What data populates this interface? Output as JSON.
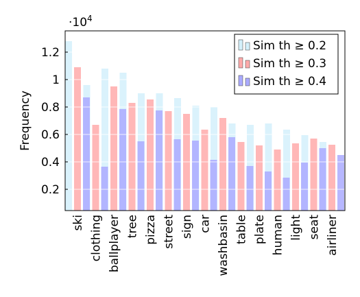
{
  "chart_data": {
    "type": "bar",
    "y_scale_label": "·10",
    "y_scale_exponent": "4",
    "ylabel": "Frequency",
    "categories": [
      "ski",
      "clothing",
      "ballplayer",
      "tree",
      "pizza",
      "street",
      "sign",
      "car",
      "washbasin",
      "table",
      "plate",
      "human",
      "light",
      "seat",
      "airliner"
    ],
    "series": [
      {
        "name": "Sim th ≥ 0.2",
        "color": "#d3f0fb",
        "values": [
          1.28,
          0.96,
          1.08,
          1.05,
          0.9,
          0.9,
          0.865,
          0.81,
          0.8,
          0.68,
          0.67,
          0.68,
          0.635,
          0.595,
          0.545
        ]
      },
      {
        "name": "Sim th ≥ 0.3",
        "color": "#ffaaaa",
        "values": [
          1.09,
          0.67,
          0.95,
          0.83,
          0.855,
          0.77,
          0.75,
          0.635,
          0.72,
          0.545,
          0.52,
          0.49,
          0.535,
          0.57,
          0.525
        ]
      },
      {
        "name": "Sim th ≥ 0.4",
        "color": "#aaaaff",
        "values": [
          0.87,
          0.365,
          0.785,
          0.55,
          0.775,
          0.565,
          0.555,
          0.415,
          0.58,
          0.37,
          0.33,
          0.285,
          0.395,
          0.5,
          0.45
        ]
      }
    ],
    "ylim": [
      0.045,
      1.355
    ],
    "yticks": [
      0.2,
      0.4,
      0.6,
      0.8,
      1,
      1.2
    ],
    "grid": true,
    "legend_position": "top-right"
  }
}
